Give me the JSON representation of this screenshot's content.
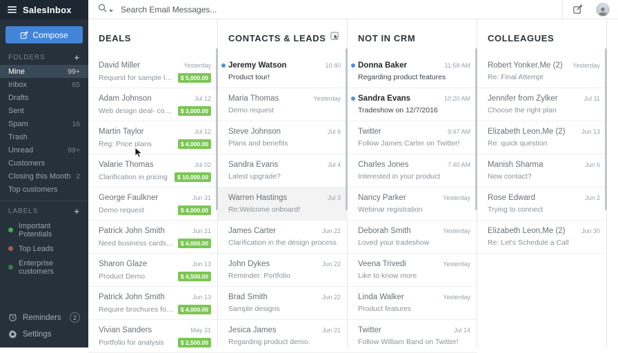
{
  "topbar": {
    "app_title": "SalesInbox",
    "search_placeholder": "Search Email Messages..."
  },
  "sidebar": {
    "compose_label": "Compose",
    "folders_header": "FOLDERS",
    "folders": [
      {
        "label": "Mine",
        "count": "99+",
        "selected": true
      },
      {
        "label": "Inbox",
        "count": "65"
      },
      {
        "label": "Drafts",
        "count": ""
      },
      {
        "label": "Sent",
        "count": ""
      },
      {
        "label": "Spam",
        "count": "16"
      },
      {
        "label": "Trash",
        "count": ""
      },
      {
        "label": "Unread",
        "count": "99+"
      },
      {
        "label": "Customers",
        "count": ""
      },
      {
        "label": "Closing this Month",
        "count": "2"
      },
      {
        "label": "Top customers",
        "count": ""
      }
    ],
    "labels_header": "LABELS",
    "labels": [
      {
        "label": "Important Potentials",
        "dot_color": "#3fae49"
      },
      {
        "label": "Top Leads",
        "dot_color": "#a85d4e"
      },
      {
        "label": "Enterprise customers",
        "dot_color": "#3a7d44"
      }
    ],
    "footer": {
      "reminders_label": "Reminders",
      "reminders_badge": "2",
      "settings_label": "Settings"
    }
  },
  "columns": [
    {
      "title": "DEALS",
      "has_select_icon": false,
      "items": [
        {
          "name": "David Miller",
          "subject": "Request for sample logo de..",
          "date": "Yesterday",
          "amount": "$ 5,000.00"
        },
        {
          "name": "Adam Johnson",
          "subject": "Web design deal- confirmat...",
          "date": "Jul 12",
          "amount": "$ 3,000.00"
        },
        {
          "name": "Martin Taylor",
          "subject": "Reg: Price plans",
          "date": "Jul 12",
          "amount": "$ 4,000.00"
        },
        {
          "name": "Valarie Thomas",
          "subject": "Clarification in pricing",
          "date": "Jul 02",
          "amount": "$ 10,000.00"
        },
        {
          "name": "George Faulkner",
          "subject": "Demo request",
          "date": "Jun 31",
          "amount": "$ 4,000.00"
        },
        {
          "name": "Patrick John Smith",
          "subject": "Need business cards desig...",
          "date": "Jun 21",
          "amount": "$ 4,000.00"
        },
        {
          "name": "Sharon Glaze",
          "subject": "Product Demo",
          "date": "Jun 13",
          "amount": "$ 4,500.00"
        },
        {
          "name": "Patrick John Smith",
          "subject": "Require brochures for my c...",
          "date": "Jun 13",
          "amount": "$ 4,000.00"
        },
        {
          "name": "Vivian Sanders",
          "subject": "Portfolio for analysis",
          "date": "May 31",
          "amount": "$ 2,500.00"
        }
      ]
    },
    {
      "title": "CONTACTS & LEADS",
      "has_select_icon": true,
      "items": [
        {
          "name": "Jeremy Watson",
          "subject": "Product tour!",
          "date": "10:40",
          "unread": true
        },
        {
          "name": "Maria Thomas",
          "subject": "Demo request",
          "date": "Yesterday"
        },
        {
          "name": "Steve Johnson",
          "subject": "Plans and benefits",
          "date": "Jul 6"
        },
        {
          "name": "Sandra Evans",
          "subject": "Latest upgrade?",
          "date": "Jul 4"
        },
        {
          "name": "Warren Hastings",
          "subject": "Re:Welcome onboard!",
          "date": "Jul 3",
          "selected": true
        },
        {
          "name": "James Carter",
          "subject": "Clarification in the design process",
          "date": "Jun 22"
        },
        {
          "name": "John Dykes",
          "subject": "Reminder: Portfolio",
          "date": "Jun 22"
        },
        {
          "name": "Brad Smith",
          "subject": "Sample designs",
          "date": "Jun 22"
        },
        {
          "name": "Jesica James",
          "subject": "Regarding product demo.",
          "date": "Jun 21"
        }
      ]
    },
    {
      "title": "NOT IN CRM",
      "has_select_icon": false,
      "items": [
        {
          "name": "Donna Baker",
          "subject": "Regarding product features",
          "date": "11:58 AM",
          "unread": true
        },
        {
          "name": "Sandra Evans",
          "subject": "Tradeshow on 12/7/2016",
          "date": "10:20 AM",
          "unread": true
        },
        {
          "name": "Twitter",
          "subject": "Follow James Carter on Twitter!",
          "date": "9:47 AM"
        },
        {
          "name": "Charles Jones",
          "subject": "Interested in your product",
          "date": "7:40 AM"
        },
        {
          "name": "Nancy Parker",
          "subject": "Webinar registration",
          "date": "Yesterday"
        },
        {
          "name": "Deborah Smith",
          "subject": "Loved your tradeshow",
          "date": "Yesterday"
        },
        {
          "name": "Veena Trivedi",
          "subject": "Like to know more",
          "date": "Yesterday"
        },
        {
          "name": "Linda Walker",
          "subject": "Product features",
          "date": "Yesterday"
        },
        {
          "name": "Twitter",
          "subject": "Follow William Band on Twitter!",
          "date": "Jul 14"
        }
      ]
    },
    {
      "title": "COLLEAGUES",
      "has_select_icon": false,
      "items": [
        {
          "name": "Robert Yonker,Me (2)",
          "subject": "Re: Final Attempt",
          "date": "Yesterday"
        },
        {
          "name": "Jennifer from Zylker",
          "subject": "Choose the right plan",
          "date": "Jul 11"
        },
        {
          "name": "Elizabeth Leon,Me (2)",
          "subject": "Re: quick question",
          "date": "Jun 13"
        },
        {
          "name": "Manish Sharma",
          "subject": "New contact?",
          "date": "Jun 6"
        },
        {
          "name": "Rose Edward",
          "subject": "Trying to connect",
          "date": "Jun 2"
        },
        {
          "name": "Elizabeth Leon,Me (2)",
          "subject": "Re: Let's Schedule a Call",
          "date": "Jun 30"
        }
      ]
    }
  ],
  "colors": {
    "accent_blue": "#4285d8",
    "deal_green": "#7cc653",
    "unread_blue": "#4a90e2",
    "sidebar_bg": "#26313c",
    "topbar_bg": "#1d2731",
    "selected_folder_bg": "#3b4855",
    "selected_mail_bg": "#f3f3f3"
  }
}
